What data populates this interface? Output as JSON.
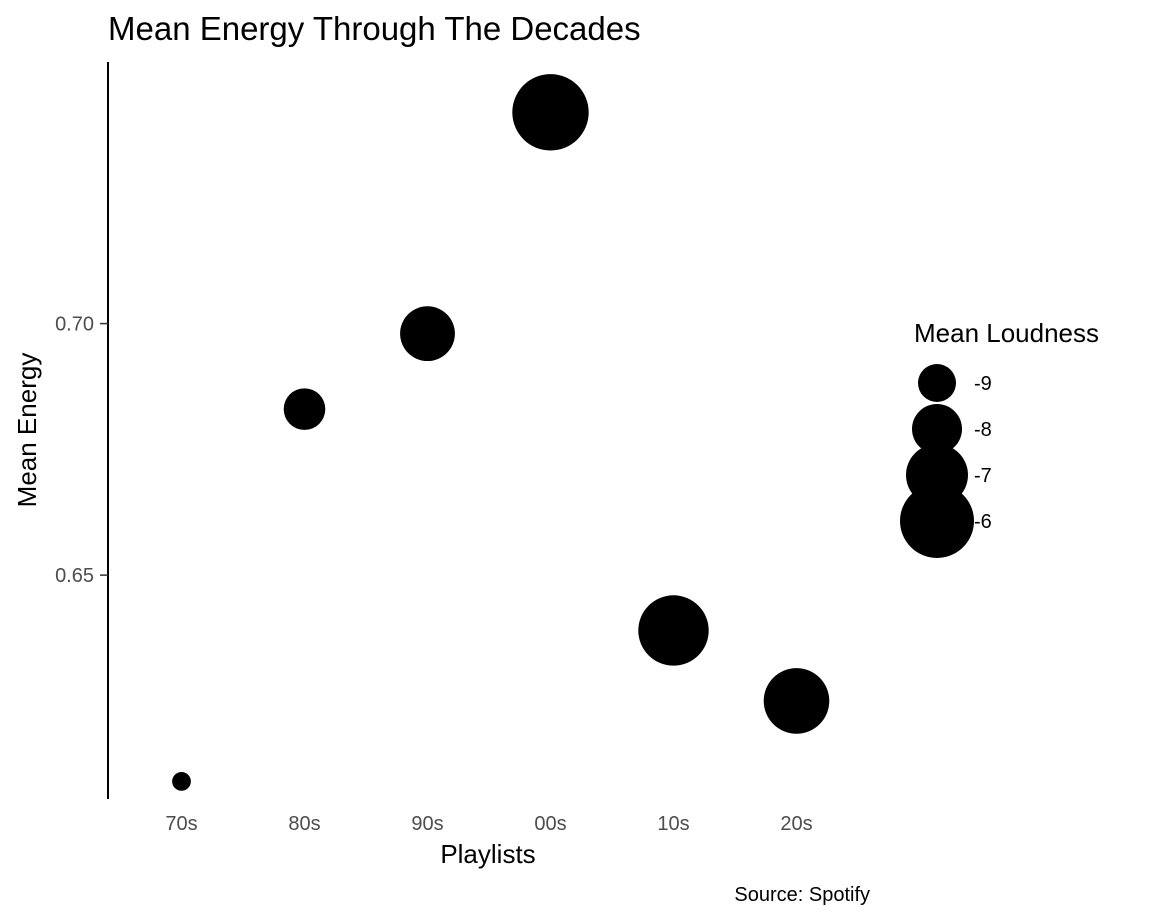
{
  "chart_data": {
    "type": "scatter",
    "title": "Mean Energy Through The Decades",
    "xlabel": "Playlists",
    "ylabel": "Mean Energy",
    "caption": "Source: Spotify",
    "categories": [
      "70s",
      "80s",
      "90s",
      "00s",
      "10s",
      "20s"
    ],
    "y_ticks": [
      {
        "value": 0.65,
        "label": "0.65"
      },
      {
        "value": 0.7,
        "label": "0.70"
      }
    ],
    "ylim": [
      0.6055,
      0.752
    ],
    "grid": false,
    "point_color": "#000000",
    "points": [
      {
        "x": "70s",
        "y": 0.609,
        "size": -10.6
      },
      {
        "x": "80s",
        "y": 0.683,
        "size": -8.7
      },
      {
        "x": "90s",
        "y": 0.698,
        "size": -7.6
      },
      {
        "x": "00s",
        "y": 0.742,
        "size": -5.8
      },
      {
        "x": "10s",
        "y": 0.639,
        "size": -6.3
      },
      {
        "x": "20s",
        "y": 0.625,
        "size": -6.7
      }
    ],
    "legend": {
      "title": "Mean Loudness",
      "placement": "right",
      "items": [
        {
          "label": "-9",
          "value": -9
        },
        {
          "label": "-8",
          "value": -8
        },
        {
          "label": "-7",
          "value": -7
        },
        {
          "label": "-6",
          "value": -6
        }
      ]
    }
  }
}
